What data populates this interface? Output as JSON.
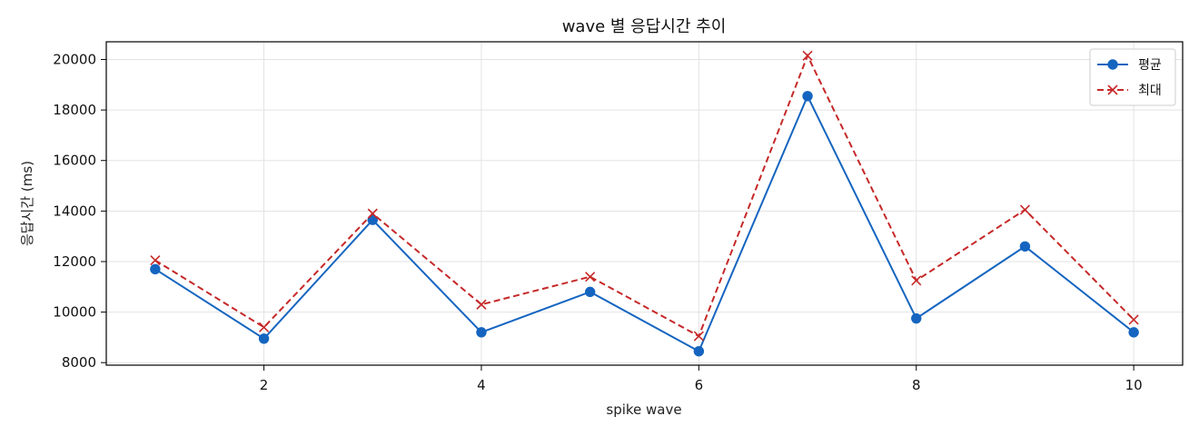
{
  "chart_data": {
    "type": "line",
    "title": "wave 별 응답시간 추이",
    "xlabel": "spike wave",
    "ylabel": "응답시간 (ms)",
    "x": [
      1,
      2,
      3,
      4,
      5,
      6,
      7,
      8,
      9,
      10
    ],
    "xlim": [
      0.55,
      10.45
    ],
    "ylim": [
      7900,
      20700
    ],
    "xticks": [
      2,
      4,
      6,
      8,
      10
    ],
    "yticks": [
      8000,
      10000,
      12000,
      14000,
      16000,
      18000,
      20000
    ],
    "grid": true,
    "legend_position": "top-right",
    "series": [
      {
        "name": "평균",
        "color": "#1565c0",
        "line_style": "solid",
        "marker": "circle",
        "values": [
          11700,
          8950,
          13650,
          9200,
          10800,
          8450,
          18550,
          9750,
          12600,
          9200
        ]
      },
      {
        "name": "최대",
        "color": "#c62828",
        "line_style": "dashed",
        "marker": "x",
        "values": [
          12050,
          9400,
          13900,
          10300,
          11400,
          9050,
          20150,
          11250,
          14050,
          9700
        ]
      }
    ]
  }
}
